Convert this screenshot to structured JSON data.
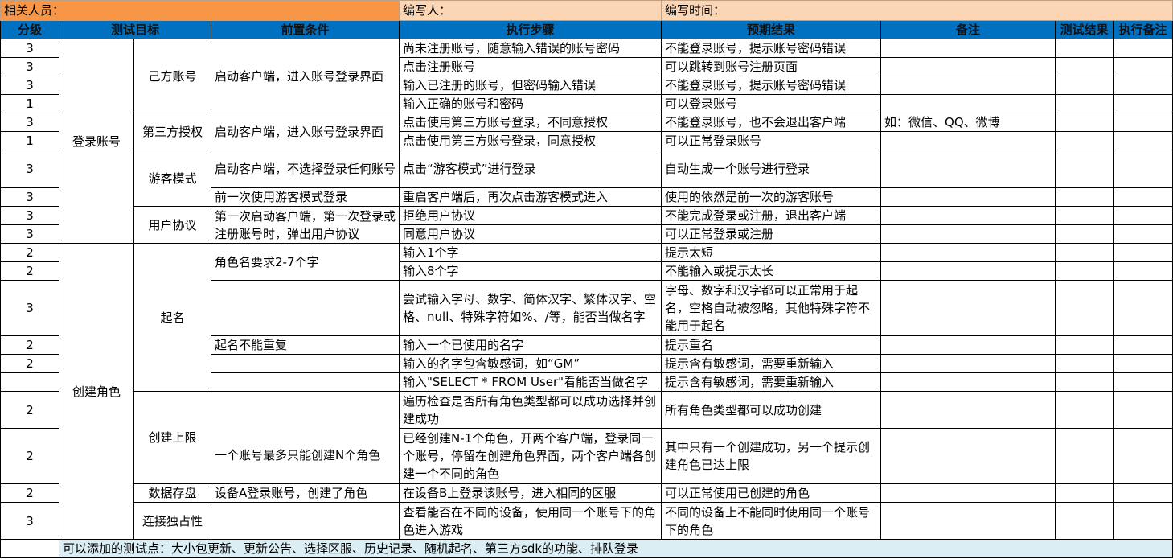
{
  "meta_row": {
    "people": "相关人员：",
    "author": "编写人：",
    "time": "编写时间："
  },
  "headers": [
    "分级",
    "测试目标",
    "前置条件",
    "执行步骤",
    "预期结果",
    "备注",
    "测试结果",
    "执行备注"
  ],
  "goals": [
    "登录账号",
    "创建角色"
  ],
  "subgoals": [
    "己方账号",
    "第三方授权",
    "游客模式",
    "用户协议",
    "起名",
    "创建上限",
    "数据存盘",
    "连接独占性"
  ],
  "preconditions": [
    "启动客户端，进入账号登录界面",
    "启动客户端，进入账号登录界面",
    "启动客户端，不选择登录任何账号",
    "前一次使用游客模式登录",
    "第一次启动客户端，第一次登录或注册账号时，弹出用户协议",
    "角色名要求2-7个字",
    "",
    "起名不能重复",
    "",
    "",
    "一个账号最多只能创建N个角色",
    "设备A登录账号，创建了角色",
    ""
  ],
  "rows": [
    {
      "grade": "3",
      "step": "尚未注册账号，随意输入错误的账号密码",
      "expected": "不能登录账号，提示账号密码错误",
      "note": ""
    },
    {
      "grade": "3",
      "step": "点击注册账号",
      "expected": "可以跳转到账号注册页面",
      "note": ""
    },
    {
      "grade": "3",
      "step": "输入已注册的账号，但密码输入错误",
      "expected": "不能登录账号，提示账号密码错误",
      "note": ""
    },
    {
      "grade": "1",
      "step": "输入正确的账号和密码",
      "expected": "可以登录账号",
      "note": ""
    },
    {
      "grade": "3",
      "step": "点击使用第三方账号登录，不同意授权",
      "expected": "不能登录账号，也不会退出客户端",
      "note": "如：微信、QQ、微博"
    },
    {
      "grade": "1",
      "step": "点击使用第三方账号登录，同意授权",
      "expected": "可以正常登录账号",
      "note": ""
    },
    {
      "grade": "3",
      "step": "点击“游客模式”进行登录",
      "expected": "自动生成一个账号进行登录",
      "note": ""
    },
    {
      "grade": "3",
      "step": "重启客户端后，再次点击游客模式进入",
      "expected": "使用的依然是前一次的游客账号",
      "note": ""
    },
    {
      "grade": "3",
      "step": "拒绝用户协议",
      "expected": "不能完成登录或注册，退出客户端",
      "note": ""
    },
    {
      "grade": "3",
      "step": "同意用户协议",
      "expected": "可以正常登录或注册",
      "note": ""
    },
    {
      "grade": "2",
      "step": "输入1个字",
      "expected": "提示太短",
      "note": ""
    },
    {
      "grade": "2",
      "step": "输入8个字",
      "expected": "不能输入或提示太长",
      "note": ""
    },
    {
      "grade": "3",
      "step": "尝试输入字母、数字、简体汉字、繁体汉字、空格、null、特殊字符如%、/等，能否当做名字",
      "expected": "字母、数字和汉字都可以正常用于起名，空格自动被忽略，其他特殊字符不能用于起名",
      "note": ""
    },
    {
      "grade": "2",
      "step": "输入一个已使用的名字",
      "expected": "提示重名",
      "note": ""
    },
    {
      "grade": "2",
      "step": "输入的名字包含敏感词，如“GM”",
      "expected": "提示含有敏感词，需要重新输入",
      "note": ""
    },
    {
      "grade": "",
      "step": "输入\"SELECT * FROM User\"看能否当做名字",
      "expected": "提示含有敏感词，需要重新输入",
      "note": ""
    },
    {
      "grade": "2",
      "step": "遍历检查是否所有角色类型都可以成功选择并创建成功",
      "expected": "所有角色类型都可以成功创建",
      "note": ""
    },
    {
      "grade": "2",
      "step": "已经创建N-1个角色，开两个客户端，登录同一个账号，停留在创建角色界面，两个客户端各创建一个不同的角色",
      "expected": "其中只有一个创建成功，另一个提示创建角色已达上限",
      "note": ""
    },
    {
      "grade": "2",
      "step": "在设备B上登录该账号，进入相同的区服",
      "expected": "可以正常使用已创建的角色",
      "note": ""
    },
    {
      "grade": "3",
      "step": "查看能否在不同的设备，使用同一个账号下的角色进入游戏",
      "expected": "不同的设备上不能同时使用同一个账号下的角色",
      "note": ""
    }
  ],
  "footer": {
    "grade": "",
    "tip": "可以添加的测试点：大小包更新、更新公告、选择区服、历史记录、随机起名、第三方sdk的功能、排队登录"
  },
  "colors": {
    "meta_orange": "#F79646",
    "meta_peach": "#FCD5B4",
    "header_blue": "#0070C0",
    "footer_blue": "#DAEEF3"
  }
}
